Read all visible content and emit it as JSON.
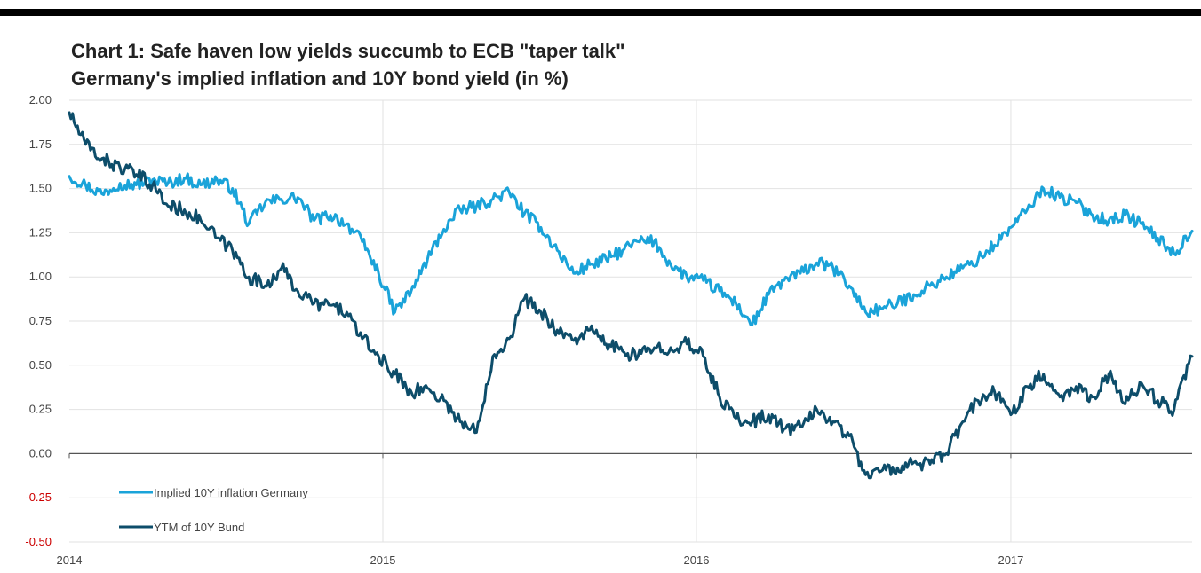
{
  "header": {
    "title": "Chart 1: Safe haven low yields succumb to ECB \"taper talk\"",
    "subtitle": "Germany's implied inflation and 10Y bond yield (in %)"
  },
  "colors": {
    "implied_inflation": "#1aa3d9",
    "bund_yield": "#0d4d6a",
    "grid": "#e2e2e2",
    "axis": "#555555",
    "tick_text": "#444444",
    "negative_tick_text": "#cc0000",
    "top_bar": "#000000"
  },
  "chart_data": {
    "type": "line",
    "title": "Chart 1: Safe haven low yields succumb to ECB \"taper talk\"",
    "subtitle": "Germany's implied inflation and 10Y bond yield (in %)",
    "xlabel": "",
    "ylabel": "",
    "xlim": [
      "2014-01-01",
      "2017-07-31"
    ],
    "ylim": [
      -0.5,
      2.0
    ],
    "x_tick_labels": [
      "2014",
      "2015",
      "2016",
      "2017"
    ],
    "x_tick_dates": [
      "2014-01-01",
      "2015-01-01",
      "2016-01-01",
      "2017-01-01"
    ],
    "y_ticks": [
      -0.5,
      -0.25,
      0.0,
      0.25,
      0.5,
      0.75,
      1.0,
      1.25,
      1.5,
      1.75,
      2.0
    ],
    "y_tick_labels": [
      "-0.50",
      "-0.25",
      "0.00",
      "0.25",
      "0.50",
      "0.75",
      "1.00",
      "1.25",
      "1.50",
      "1.75",
      "2.00"
    ],
    "grid": true,
    "legend_position": "bottom-left",
    "series": [
      {
        "name": "Implied 10Y inflation Germany",
        "color": "#1aa3d9",
        "x": [
          "2014-01-01",
          "2014-01-20",
          "2014-02-08",
          "2014-03-01",
          "2014-03-20",
          "2014-04-08",
          "2014-04-26",
          "2014-05-15",
          "2014-06-03",
          "2014-06-22",
          "2014-07-10",
          "2014-07-29",
          "2014-08-17",
          "2014-09-05",
          "2014-09-24",
          "2014-10-13",
          "2014-11-01",
          "2014-11-20",
          "2014-12-08",
          "2014-12-27",
          "2015-01-15",
          "2015-02-03",
          "2015-02-22",
          "2015-03-13",
          "2015-04-01",
          "2015-04-20",
          "2015-05-09",
          "2015-05-28",
          "2015-06-15",
          "2015-07-04",
          "2015-07-23",
          "2015-08-11",
          "2015-08-30",
          "2015-09-18",
          "2015-10-07",
          "2015-10-25",
          "2015-11-13",
          "2015-12-02",
          "2015-12-21",
          "2016-01-09",
          "2016-01-28",
          "2016-02-16",
          "2016-03-06",
          "2016-03-25",
          "2016-04-12",
          "2016-05-01",
          "2016-05-20",
          "2016-06-08",
          "2016-06-27",
          "2016-07-16",
          "2016-08-03",
          "2016-08-22",
          "2016-09-10",
          "2016-09-29",
          "2016-10-18",
          "2016-11-06",
          "2016-11-24",
          "2016-12-13",
          "2017-01-01",
          "2017-01-20",
          "2017-02-08",
          "2017-02-27",
          "2017-03-18",
          "2017-04-06",
          "2017-04-25",
          "2017-05-14",
          "2017-06-02",
          "2017-06-21",
          "2017-07-10",
          "2017-07-31"
        ],
        "values": [
          1.57,
          1.52,
          1.47,
          1.53,
          1.52,
          1.55,
          1.53,
          1.56,
          1.52,
          1.55,
          1.5,
          1.3,
          1.42,
          1.44,
          1.45,
          1.32,
          1.35,
          1.3,
          1.2,
          1.02,
          0.8,
          0.92,
          1.1,
          1.27,
          1.38,
          1.4,
          1.44,
          1.48,
          1.36,
          1.28,
          1.15,
          1.02,
          1.07,
          1.1,
          1.15,
          1.2,
          1.2,
          1.07,
          1.0,
          0.98,
          0.92,
          0.85,
          0.73,
          0.9,
          0.98,
          1.02,
          1.08,
          1.05,
          0.95,
          0.8,
          0.82,
          0.85,
          0.9,
          0.95,
          1.0,
          1.05,
          1.1,
          1.18,
          1.28,
          1.38,
          1.5,
          1.45,
          1.42,
          1.35,
          1.32,
          1.35,
          1.3,
          1.22,
          1.13,
          1.26
        ]
      },
      {
        "name": "YTM of 10Y Bund",
        "color": "#0d4d6a",
        "x": [
          "2014-01-01",
          "2014-01-20",
          "2014-02-08",
          "2014-03-01",
          "2014-03-20",
          "2014-04-08",
          "2014-04-26",
          "2014-05-15",
          "2014-06-03",
          "2014-06-22",
          "2014-07-10",
          "2014-07-29",
          "2014-08-17",
          "2014-09-05",
          "2014-09-24",
          "2014-10-13",
          "2014-11-01",
          "2014-11-20",
          "2014-12-08",
          "2014-12-27",
          "2015-01-15",
          "2015-02-03",
          "2015-02-22",
          "2015-03-13",
          "2015-04-01",
          "2015-04-20",
          "2015-05-09",
          "2015-05-28",
          "2015-06-15",
          "2015-07-04",
          "2015-07-23",
          "2015-08-11",
          "2015-08-30",
          "2015-09-18",
          "2015-10-07",
          "2015-10-25",
          "2015-11-13",
          "2015-12-02",
          "2015-12-21",
          "2016-01-09",
          "2016-01-28",
          "2016-02-16",
          "2016-03-06",
          "2016-03-25",
          "2016-04-12",
          "2016-05-01",
          "2016-05-20",
          "2016-06-08",
          "2016-06-27",
          "2016-07-16",
          "2016-08-03",
          "2016-08-22",
          "2016-09-10",
          "2016-09-29",
          "2016-10-18",
          "2016-11-06",
          "2016-11-24",
          "2016-12-13",
          "2017-01-01",
          "2017-01-20",
          "2017-02-08",
          "2017-02-27",
          "2017-03-18",
          "2017-04-06",
          "2017-04-25",
          "2017-05-14",
          "2017-06-02",
          "2017-06-21",
          "2017-07-10",
          "2017-07-31"
        ],
        "values": [
          1.93,
          1.75,
          1.67,
          1.62,
          1.58,
          1.52,
          1.4,
          1.38,
          1.32,
          1.22,
          1.15,
          1.0,
          0.95,
          1.05,
          0.92,
          0.85,
          0.84,
          0.8,
          0.65,
          0.55,
          0.45,
          0.35,
          0.37,
          0.3,
          0.18,
          0.12,
          0.55,
          0.65,
          0.88,
          0.8,
          0.7,
          0.64,
          0.7,
          0.62,
          0.58,
          0.55,
          0.6,
          0.6,
          0.62,
          0.55,
          0.32,
          0.2,
          0.18,
          0.22,
          0.14,
          0.15,
          0.25,
          0.18,
          0.1,
          -0.12,
          -0.1,
          -0.08,
          -0.05,
          -0.06,
          0.0,
          0.18,
          0.3,
          0.35,
          0.22,
          0.38,
          0.45,
          0.32,
          0.38,
          0.32,
          0.45,
          0.28,
          0.4,
          0.3,
          0.25,
          0.55
        ]
      }
    ]
  }
}
